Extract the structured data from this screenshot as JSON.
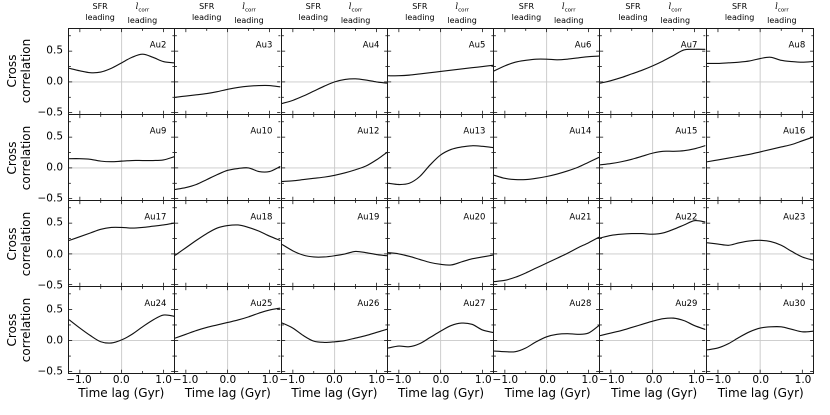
{
  "figure": {
    "ylabel_lines": [
      "Cross",
      "correlation"
    ],
    "xlabel": "Time lag (Gyr)",
    "y_tick_labels": [
      "0.5",
      "0.0",
      "−0.5"
    ],
    "x_tick_labels": [
      "−1.0",
      "0.0",
      "1.0"
    ],
    "col_header_left_lines": [
      "SFR",
      "leading"
    ],
    "col_header_right": {
      "symbol": "l",
      "subscript": "corr",
      "line2": "leading"
    },
    "colors": {
      "line": "#111111",
      "grid": "#c8c8c8",
      "border": "#1a1a1a",
      "text": "#000000",
      "background": "#ffffff"
    }
  },
  "chart_data": {
    "type": "line",
    "layout": {
      "rows": 4,
      "cols": 7
    },
    "xlim": [
      -1.26,
      1.26
    ],
    "ylim": [
      -0.52,
      0.86
    ],
    "x_ticks": [
      -1.0,
      0.0,
      1.0
    ],
    "x_minor_ticks": [
      -0.5,
      0.5
    ],
    "y_ticks": [
      0.5,
      0.0,
      -0.5
    ],
    "y_minor_ticks": [
      0.75,
      0.25,
      -0.25
    ],
    "header_x_positions": [
      -0.5,
      0.5
    ],
    "x": [
      -1.25,
      -1.0,
      -0.75,
      -0.5,
      -0.25,
      0.0,
      0.25,
      0.5,
      0.75,
      1.0,
      1.25
    ],
    "panels": [
      {
        "label": "Au2",
        "values": [
          0.22,
          0.18,
          0.15,
          0.16,
          0.22,
          0.31,
          0.4,
          0.45,
          0.4,
          0.33,
          0.31
        ]
      },
      {
        "label": "Au3",
        "values": [
          -0.25,
          -0.23,
          -0.21,
          -0.19,
          -0.16,
          -0.12,
          -0.09,
          -0.07,
          -0.06,
          -0.06,
          -0.08
        ]
      },
      {
        "label": "Au4",
        "values": [
          -0.35,
          -0.3,
          -0.23,
          -0.15,
          -0.07,
          0.0,
          0.04,
          0.05,
          0.03,
          0.0,
          -0.02
        ]
      },
      {
        "label": "Au5",
        "values": [
          0.1,
          0.1,
          0.11,
          0.13,
          0.15,
          0.17,
          0.19,
          0.21,
          0.23,
          0.25,
          0.27
        ]
      },
      {
        "label": "Au6",
        "values": [
          0.18,
          0.26,
          0.32,
          0.35,
          0.37,
          0.37,
          0.36,
          0.37,
          0.39,
          0.41,
          0.42
        ]
      },
      {
        "label": "Au7",
        "values": [
          -0.02,
          0.02,
          0.07,
          0.13,
          0.19,
          0.26,
          0.34,
          0.43,
          0.52,
          0.53,
          0.53
        ]
      },
      {
        "label": "Au8",
        "values": [
          0.3,
          0.3,
          0.31,
          0.32,
          0.34,
          0.38,
          0.4,
          0.35,
          0.33,
          0.32,
          0.33
        ]
      },
      {
        "label": "Au9",
        "values": [
          0.15,
          0.15,
          0.14,
          0.11,
          0.1,
          0.11,
          0.12,
          0.12,
          0.12,
          0.13,
          0.18
        ]
      },
      {
        "label": "Au10",
        "values": [
          -0.35,
          -0.32,
          -0.27,
          -0.19,
          -0.11,
          -0.04,
          -0.01,
          0.0,
          -0.06,
          -0.06,
          0.02
        ]
      },
      {
        "label": "Au12",
        "values": [
          -0.22,
          -0.21,
          -0.19,
          -0.17,
          -0.15,
          -0.12,
          -0.08,
          -0.03,
          0.03,
          0.13,
          0.25
        ]
      },
      {
        "label": "Au13",
        "values": [
          -0.25,
          -0.27,
          -0.25,
          -0.14,
          0.05,
          0.21,
          0.3,
          0.34,
          0.36,
          0.35,
          0.33
        ]
      },
      {
        "label": "Au14",
        "values": [
          -0.12,
          -0.17,
          -0.19,
          -0.19,
          -0.17,
          -0.14,
          -0.1,
          -0.05,
          0.01,
          0.09,
          0.17
        ]
      },
      {
        "label": "Au15",
        "values": [
          0.05,
          0.07,
          0.1,
          0.14,
          0.19,
          0.24,
          0.27,
          0.27,
          0.28,
          0.31,
          0.36
        ]
      },
      {
        "label": "Au16",
        "values": [
          0.1,
          0.13,
          0.16,
          0.19,
          0.22,
          0.26,
          0.3,
          0.34,
          0.38,
          0.44,
          0.5
        ]
      },
      {
        "label": "Au17",
        "values": [
          0.22,
          0.28,
          0.34,
          0.4,
          0.43,
          0.43,
          0.42,
          0.43,
          0.45,
          0.47,
          0.5
        ]
      },
      {
        "label": "Au18",
        "values": [
          -0.02,
          0.1,
          0.22,
          0.33,
          0.42,
          0.46,
          0.47,
          0.43,
          0.37,
          0.29,
          0.22
        ]
      },
      {
        "label": "Au19",
        "values": [
          0.15,
          0.05,
          -0.02,
          -0.05,
          -0.05,
          -0.03,
          0.0,
          0.04,
          0.02,
          -0.01,
          -0.03
        ]
      },
      {
        "label": "Au20",
        "values": [
          0.02,
          0.0,
          -0.04,
          -0.09,
          -0.14,
          -0.17,
          -0.18,
          -0.13,
          -0.08,
          -0.05,
          -0.02
        ]
      },
      {
        "label": "Au21",
        "values": [
          -0.45,
          -0.43,
          -0.38,
          -0.31,
          -0.23,
          -0.15,
          -0.07,
          0.01,
          0.1,
          0.18,
          0.27
        ]
      },
      {
        "label": "Au22",
        "values": [
          0.26,
          0.3,
          0.32,
          0.33,
          0.33,
          0.32,
          0.34,
          0.4,
          0.47,
          0.54,
          0.52
        ]
      },
      {
        "label": "Au23",
        "values": [
          0.18,
          0.16,
          0.14,
          0.18,
          0.21,
          0.22,
          0.2,
          0.14,
          0.04,
          -0.05,
          -0.1
        ]
      },
      {
        "label": "Au24",
        "values": [
          0.33,
          0.2,
          0.08,
          -0.02,
          -0.04,
          0.01,
          0.1,
          0.22,
          0.33,
          0.41,
          0.39
        ]
      },
      {
        "label": "Au25",
        "values": [
          0.04,
          0.1,
          0.16,
          0.21,
          0.25,
          0.29,
          0.33,
          0.38,
          0.44,
          0.49,
          0.52
        ]
      },
      {
        "label": "Au26",
        "values": [
          0.28,
          0.2,
          0.08,
          -0.01,
          -0.03,
          -0.02,
          0.0,
          0.04,
          0.08,
          0.13,
          0.18
        ]
      },
      {
        "label": "Au27",
        "values": [
          -0.12,
          -0.09,
          -0.1,
          -0.05,
          0.05,
          0.15,
          0.24,
          0.28,
          0.26,
          0.17,
          0.13
        ]
      },
      {
        "label": "Au28",
        "values": [
          -0.17,
          -0.18,
          -0.18,
          -0.12,
          -0.02,
          0.06,
          0.1,
          0.11,
          0.1,
          0.12,
          0.24
        ]
      },
      {
        "label": "Au29",
        "values": [
          0.08,
          0.12,
          0.16,
          0.21,
          0.26,
          0.31,
          0.35,
          0.36,
          0.32,
          0.24,
          0.18
        ]
      },
      {
        "label": "Au30",
        "values": [
          -0.15,
          -0.12,
          -0.05,
          0.05,
          0.14,
          0.2,
          0.22,
          0.22,
          0.18,
          0.14,
          0.15
        ]
      }
    ]
  }
}
